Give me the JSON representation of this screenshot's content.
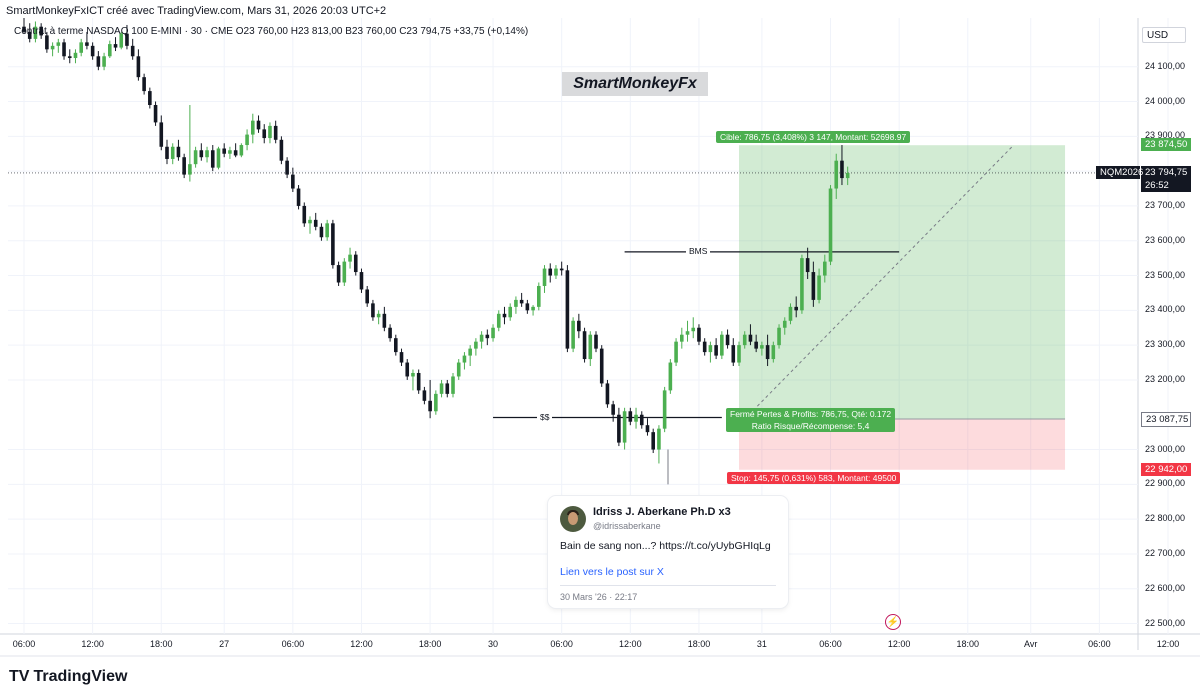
{
  "header": {
    "attribution": "SmartMonkeyFxICT créé avec TradingView.com, Mars 31, 2026 20:03 UTC+2",
    "symbol_line": "Contrat à terme NASDAQ 100 E-MINI · 30 · CME  O23 760,00  H23 813,00  B23 760,00  C23 794,75  +33,75 (+0,14%)"
  },
  "watermark": "SmartMonkeyFx",
  "currency": "USD",
  "price_axis": [
    {
      "label": "24 100,00",
      "v": 24100
    },
    {
      "label": "24 000,00",
      "v": 24000
    },
    {
      "label": "23 900,00",
      "v": 23900
    },
    {
      "label": "23 800,00",
      "v": 23800
    },
    {
      "label": "23 700,00",
      "v": 23700
    },
    {
      "label": "23 600,00",
      "v": 23600
    },
    {
      "label": "23 500,00",
      "v": 23500
    },
    {
      "label": "23 400,00",
      "v": 23400
    },
    {
      "label": "23 300,00",
      "v": 23300
    },
    {
      "label": "23 200,00",
      "v": 23200
    },
    {
      "label": "23 000,00",
      "v": 23000
    },
    {
      "label": "22 900,00",
      "v": 22900
    },
    {
      "label": "22 800,00",
      "v": 22800
    },
    {
      "label": "22 700,00",
      "v": 22700
    },
    {
      "label": "22 600,00",
      "v": 22600
    },
    {
      "label": "22 500,00",
      "v": 22500
    }
  ],
  "price_tags": {
    "target": {
      "label": "23 874,50",
      "v": 23874.5,
      "color": "#4caf50"
    },
    "last": {
      "label": "23 794,75",
      "countdown": "26:52",
      "v": 23794.75,
      "color": "#131722",
      "ticker": "NQM2026"
    },
    "entry": {
      "label": "23 087,75",
      "v": 23087.75,
      "color": "#787b86"
    },
    "stop": {
      "label": "22 942,00",
      "v": 22942.0,
      "color": "#f23645"
    }
  },
  "time_axis": [
    {
      "label": "06:00",
      "idx": 0
    },
    {
      "label": "12:00",
      "idx": 12
    },
    {
      "label": "18:00",
      "idx": 24
    },
    {
      "label": "27",
      "idx": 35
    },
    {
      "label": "06:00",
      "idx": 47
    },
    {
      "label": "12:00",
      "idx": 59
    },
    {
      "label": "18:00",
      "idx": 71
    },
    {
      "label": "30",
      "idx": 82
    },
    {
      "label": "06:00",
      "idx": 94
    },
    {
      "label": "12:00",
      "idx": 106
    },
    {
      "label": "18:00",
      "idx": 118
    },
    {
      "label": "31",
      "idx": 129
    },
    {
      "label": "06:00",
      "idx": 141
    },
    {
      "label": "12:00",
      "idx": 153
    },
    {
      "label": "18:00",
      "idx": 165
    },
    {
      "label": "Avr",
      "idx": 176
    },
    {
      "label": "06:00",
      "idx": 188
    },
    {
      "label": "12:00",
      "idx": 200
    },
    {
      "label": "18:00",
      "idx": 212
    }
  ],
  "annotations": {
    "bms": "BMS",
    "ss": "$$",
    "target_label": "Cible: 786,75 (3,408%) 3 147, Montant: 52698.97",
    "closed_label_1": "Fermé Pertes & Profits: 786,75, Qté: 0.172",
    "closed_label_2": "Ratio Risque/Récompense: 5,4",
    "stop_label": "Stop: 145,75 (0,631%) 583, Montant: 49500"
  },
  "tweet": {
    "name": "Idriss J. Aberkane Ph.D x3",
    "handle": "@idrissaberkane",
    "text": "Bain de sang non...? https://t.co/yUybGHIqLg",
    "link": "Lien vers le post sur X",
    "date": "30 Mars '26 · 22:17"
  },
  "footer": {
    "brand": "TradingView"
  },
  "colors": {
    "up": "#4caf50",
    "down": "#131722",
    "profit_zone": "#4caf50",
    "loss_zone": "#f23645"
  },
  "chart_data": {
    "type": "candlestick",
    "symbol": "NQM2026",
    "timeframe": "30",
    "y_range": [
      22470,
      24240
    ],
    "annotations": [
      {
        "text": "BMS",
        "y": 23568,
        "from": 105,
        "to": 153
      },
      {
        "text": "$$",
        "y": 23092,
        "from": 82,
        "to": 122
      }
    ],
    "position": {
      "entry": 23087.75,
      "target": 23874.5,
      "stop": 22942.0,
      "from": 125,
      "to": 182
    },
    "candles": [
      {
        "o": 24215,
        "h": 24240,
        "l": 24195,
        "c": 24200
      },
      {
        "o": 24200,
        "h": 24225,
        "l": 24170,
        "c": 24180
      },
      {
        "o": 24180,
        "h": 24230,
        "l": 24170,
        "c": 24215
      },
      {
        "o": 24215,
        "h": 24225,
        "l": 24180,
        "c": 24190
      },
      {
        "o": 24190,
        "h": 24200,
        "l": 24140,
        "c": 24150
      },
      {
        "o": 24150,
        "h": 24170,
        "l": 24130,
        "c": 24160
      },
      {
        "o": 24160,
        "h": 24180,
        "l": 24140,
        "c": 24170
      },
      {
        "o": 24170,
        "h": 24180,
        "l": 24120,
        "c": 24130
      },
      {
        "o": 24130,
        "h": 24150,
        "l": 24110,
        "c": 24125
      },
      {
        "o": 24125,
        "h": 24150,
        "l": 24110,
        "c": 24140
      },
      {
        "o": 24140,
        "h": 24180,
        "l": 24130,
        "c": 24170
      },
      {
        "o": 24170,
        "h": 24200,
        "l": 24150,
        "c": 24160
      },
      {
        "o": 24160,
        "h": 24170,
        "l": 24120,
        "c": 24130
      },
      {
        "o": 24130,
        "h": 24145,
        "l": 24090,
        "c": 24100
      },
      {
        "o": 24100,
        "h": 24140,
        "l": 24090,
        "c": 24130
      },
      {
        "o": 24130,
        "h": 24175,
        "l": 24125,
        "c": 24165
      },
      {
        "o": 24165,
        "h": 24185,
        "l": 24145,
        "c": 24155
      },
      {
        "o": 24155,
        "h": 24200,
        "l": 24150,
        "c": 24195
      },
      {
        "o": 24195,
        "h": 24220,
        "l": 24150,
        "c": 24160
      },
      {
        "o": 24160,
        "h": 24180,
        "l": 24120,
        "c": 24130
      },
      {
        "o": 24130,
        "h": 24150,
        "l": 24060,
        "c": 24070
      },
      {
        "o": 24070,
        "h": 24080,
        "l": 24020,
        "c": 24030
      },
      {
        "o": 24030,
        "h": 24040,
        "l": 23980,
        "c": 23990
      },
      {
        "o": 23990,
        "h": 24000,
        "l": 23930,
        "c": 23940
      },
      {
        "o": 23940,
        "h": 23960,
        "l": 23860,
        "c": 23870
      },
      {
        "o": 23870,
        "h": 23890,
        "l": 23820,
        "c": 23835
      },
      {
        "o": 23835,
        "h": 23880,
        "l": 23820,
        "c": 23870
      },
      {
        "o": 23870,
        "h": 23890,
        "l": 23830,
        "c": 23840
      },
      {
        "o": 23840,
        "h": 23850,
        "l": 23780,
        "c": 23790
      },
      {
        "o": 23790,
        "h": 23990,
        "l": 23770,
        "c": 23820
      },
      {
        "o": 23820,
        "h": 23870,
        "l": 23810,
        "c": 23860
      },
      {
        "o": 23860,
        "h": 23880,
        "l": 23830,
        "c": 23840
      },
      {
        "o": 23840,
        "h": 23870,
        "l": 23825,
        "c": 23860
      },
      {
        "o": 23860,
        "h": 23875,
        "l": 23800,
        "c": 23810
      },
      {
        "o": 23810,
        "h": 23870,
        "l": 23805,
        "c": 23865
      },
      {
        "o": 23865,
        "h": 23880,
        "l": 23840,
        "c": 23850
      },
      {
        "o": 23850,
        "h": 23870,
        "l": 23835,
        "c": 23860
      },
      {
        "o": 23860,
        "h": 23880,
        "l": 23840,
        "c": 23845
      },
      {
        "o": 23845,
        "h": 23880,
        "l": 23840,
        "c": 23875
      },
      {
        "o": 23875,
        "h": 23920,
        "l": 23860,
        "c": 23905
      },
      {
        "o": 23905,
        "h": 23965,
        "l": 23880,
        "c": 23945
      },
      {
        "o": 23945,
        "h": 23960,
        "l": 23910,
        "c": 23920
      },
      {
        "o": 23920,
        "h": 23935,
        "l": 23880,
        "c": 23895
      },
      {
        "o": 23895,
        "h": 23940,
        "l": 23880,
        "c": 23930
      },
      {
        "o": 23930,
        "h": 23945,
        "l": 23880,
        "c": 23890
      },
      {
        "o": 23890,
        "h": 23900,
        "l": 23820,
        "c": 23830
      },
      {
        "o": 23830,
        "h": 23840,
        "l": 23780,
        "c": 23790
      },
      {
        "o": 23790,
        "h": 23810,
        "l": 23740,
        "c": 23750
      },
      {
        "o": 23750,
        "h": 23760,
        "l": 23690,
        "c": 23700
      },
      {
        "o": 23700,
        "h": 23710,
        "l": 23640,
        "c": 23650
      },
      {
        "o": 23650,
        "h": 23670,
        "l": 23620,
        "c": 23660
      },
      {
        "o": 23660,
        "h": 23680,
        "l": 23630,
        "c": 23640
      },
      {
        "o": 23640,
        "h": 23650,
        "l": 23600,
        "c": 23610
      },
      {
        "o": 23610,
        "h": 23660,
        "l": 23600,
        "c": 23650
      },
      {
        "o": 23650,
        "h": 23660,
        "l": 23520,
        "c": 23530
      },
      {
        "o": 23530,
        "h": 23540,
        "l": 23470,
        "c": 23480
      },
      {
        "o": 23480,
        "h": 23550,
        "l": 23470,
        "c": 23540
      },
      {
        "o": 23540,
        "h": 23580,
        "l": 23520,
        "c": 23560
      },
      {
        "o": 23560,
        "h": 23570,
        "l": 23500,
        "c": 23510
      },
      {
        "o": 23510,
        "h": 23520,
        "l": 23450,
        "c": 23460
      },
      {
        "o": 23460,
        "h": 23470,
        "l": 23410,
        "c": 23420
      },
      {
        "o": 23420,
        "h": 23430,
        "l": 23370,
        "c": 23380
      },
      {
        "o": 23380,
        "h": 23400,
        "l": 23360,
        "c": 23390
      },
      {
        "o": 23390,
        "h": 23410,
        "l": 23340,
        "c": 23350
      },
      {
        "o": 23350,
        "h": 23360,
        "l": 23310,
        "c": 23320
      },
      {
        "o": 23320,
        "h": 23330,
        "l": 23270,
        "c": 23280
      },
      {
        "o": 23280,
        "h": 23290,
        "l": 23240,
        "c": 23250
      },
      {
        "o": 23250,
        "h": 23260,
        "l": 23200,
        "c": 23210
      },
      {
        "o": 23210,
        "h": 23230,
        "l": 23170,
        "c": 23220
      },
      {
        "o": 23220,
        "h": 23230,
        "l": 23160,
        "c": 23170
      },
      {
        "o": 23170,
        "h": 23180,
        "l": 23130,
        "c": 23140
      },
      {
        "o": 23140,
        "h": 23200,
        "l": 23090,
        "c": 23110
      },
      {
        "o": 23110,
        "h": 23170,
        "l": 23100,
        "c": 23160
      },
      {
        "o": 23160,
        "h": 23200,
        "l": 23150,
        "c": 23190
      },
      {
        "o": 23190,
        "h": 23200,
        "l": 23150,
        "c": 23160
      },
      {
        "o": 23160,
        "h": 23220,
        "l": 23150,
        "c": 23210
      },
      {
        "o": 23210,
        "h": 23260,
        "l": 23200,
        "c": 23250
      },
      {
        "o": 23250,
        "h": 23280,
        "l": 23230,
        "c": 23270
      },
      {
        "o": 23270,
        "h": 23300,
        "l": 23240,
        "c": 23290
      },
      {
        "o": 23290,
        "h": 23320,
        "l": 23270,
        "c": 23310
      },
      {
        "o": 23310,
        "h": 23340,
        "l": 23290,
        "c": 23330
      },
      {
        "o": 23330,
        "h": 23345,
        "l": 23300,
        "c": 23320
      },
      {
        "o": 23320,
        "h": 23360,
        "l": 23310,
        "c": 23350
      },
      {
        "o": 23350,
        "h": 23400,
        "l": 23340,
        "c": 23390
      },
      {
        "o": 23390,
        "h": 23410,
        "l": 23360,
        "c": 23380
      },
      {
        "o": 23380,
        "h": 23420,
        "l": 23370,
        "c": 23410
      },
      {
        "o": 23410,
        "h": 23440,
        "l": 23390,
        "c": 23430
      },
      {
        "o": 23430,
        "h": 23450,
        "l": 23410,
        "c": 23420
      },
      {
        "o": 23420,
        "h": 23430,
        "l": 23390,
        "c": 23400
      },
      {
        "o": 23400,
        "h": 23415,
        "l": 23385,
        "c": 23410
      },
      {
        "o": 23410,
        "h": 23480,
        "l": 23400,
        "c": 23470
      },
      {
        "o": 23470,
        "h": 23530,
        "l": 23450,
        "c": 23520
      },
      {
        "o": 23520,
        "h": 23535,
        "l": 23480,
        "c": 23500
      },
      {
        "o": 23500,
        "h": 23530,
        "l": 23490,
        "c": 23520
      },
      {
        "o": 23520,
        "h": 23540,
        "l": 23500,
        "c": 23515
      },
      {
        "o": 23515,
        "h": 23530,
        "l": 23280,
        "c": 23290
      },
      {
        "o": 23290,
        "h": 23380,
        "l": 23280,
        "c": 23370
      },
      {
        "o": 23370,
        "h": 23390,
        "l": 23320,
        "c": 23340
      },
      {
        "o": 23340,
        "h": 23350,
        "l": 23250,
        "c": 23260
      },
      {
        "o": 23260,
        "h": 23340,
        "l": 23240,
        "c": 23330
      },
      {
        "o": 23330,
        "h": 23340,
        "l": 23280,
        "c": 23290
      },
      {
        "o": 23290,
        "h": 23300,
        "l": 23180,
        "c": 23190
      },
      {
        "o": 23190,
        "h": 23200,
        "l": 23120,
        "c": 23130
      },
      {
        "o": 23130,
        "h": 23140,
        "l": 23080,
        "c": 23100
      },
      {
        "o": 23100,
        "h": 23120,
        "l": 23010,
        "c": 23020
      },
      {
        "o": 23020,
        "h": 23120,
        "l": 23000,
        "c": 23110
      },
      {
        "o": 23110,
        "h": 23120,
        "l": 23070,
        "c": 23080
      },
      {
        "o": 23080,
        "h": 23120,
        "l": 23060,
        "c": 23100
      },
      {
        "o": 23100,
        "h": 23110,
        "l": 23060,
        "c": 23070
      },
      {
        "o": 23070,
        "h": 23090,
        "l": 23040,
        "c": 23050
      },
      {
        "o": 23050,
        "h": 23060,
        "l": 22990,
        "c": 23000
      },
      {
        "o": 23000,
        "h": 23070,
        "l": 22960,
        "c": 23060
      },
      {
        "o": 23060,
        "h": 23180,
        "l": 23050,
        "c": 23170
      },
      {
        "o": 23170,
        "h": 23260,
        "l": 23160,
        "c": 23250
      },
      {
        "o": 23250,
        "h": 23320,
        "l": 23240,
        "c": 23310
      },
      {
        "o": 23310,
        "h": 23350,
        "l": 23290,
        "c": 23330
      },
      {
        "o": 23330,
        "h": 23370,
        "l": 23310,
        "c": 23340
      },
      {
        "o": 23340,
        "h": 23380,
        "l": 23320,
        "c": 23350
      },
      {
        "o": 23350,
        "h": 23360,
        "l": 23300,
        "c": 23310
      },
      {
        "o": 23310,
        "h": 23320,
        "l": 23270,
        "c": 23280
      },
      {
        "o": 23280,
        "h": 23310,
        "l": 23250,
        "c": 23300
      },
      {
        "o": 23300,
        "h": 23320,
        "l": 23260,
        "c": 23270
      },
      {
        "o": 23270,
        "h": 23340,
        "l": 23260,
        "c": 23330
      },
      {
        "o": 23330,
        "h": 23345,
        "l": 23290,
        "c": 23300
      },
      {
        "o": 23300,
        "h": 23320,
        "l": 23240,
        "c": 23250
      },
      {
        "o": 23250,
        "h": 23310,
        "l": 23240,
        "c": 23300
      },
      {
        "o": 23300,
        "h": 23340,
        "l": 23290,
        "c": 23330
      },
      {
        "o": 23330,
        "h": 23360,
        "l": 23300,
        "c": 23310
      },
      {
        "o": 23310,
        "h": 23330,
        "l": 23280,
        "c": 23290
      },
      {
        "o": 23290,
        "h": 23310,
        "l": 23270,
        "c": 23300
      },
      {
        "o": 23300,
        "h": 23330,
        "l": 23240,
        "c": 23260
      },
      {
        "o": 23260,
        "h": 23310,
        "l": 23250,
        "c": 23300
      },
      {
        "o": 23300,
        "h": 23360,
        "l": 23290,
        "c": 23350
      },
      {
        "o": 23350,
        "h": 23380,
        "l": 23330,
        "c": 23370
      },
      {
        "o": 23370,
        "h": 23420,
        "l": 23360,
        "c": 23410
      },
      {
        "o": 23410,
        "h": 23440,
        "l": 23380,
        "c": 23400
      },
      {
        "o": 23400,
        "h": 23560,
        "l": 23390,
        "c": 23550
      },
      {
        "o": 23550,
        "h": 23580,
        "l": 23490,
        "c": 23510
      },
      {
        "o": 23510,
        "h": 23540,
        "l": 23410,
        "c": 23430
      },
      {
        "o": 23430,
        "h": 23520,
        "l": 23420,
        "c": 23500
      },
      {
        "o": 23500,
        "h": 23560,
        "l": 23480,
        "c": 23540
      },
      {
        "o": 23540,
        "h": 23760,
        "l": 23530,
        "c": 23750
      },
      {
        "o": 23750,
        "h": 23850,
        "l": 23720,
        "c": 23830
      },
      {
        "o": 23830,
        "h": 23875,
        "l": 23760,
        "c": 23780
      },
      {
        "o": 23780,
        "h": 23813,
        "l": 23760,
        "c": 23794.75
      }
    ]
  }
}
